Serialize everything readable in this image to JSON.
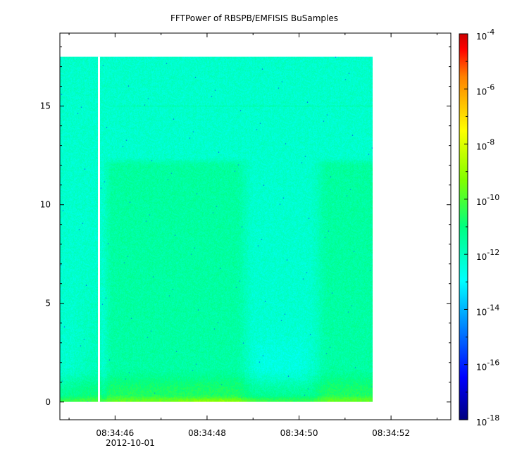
{
  "chart_data": {
    "type": "heatmap",
    "title": "FFTPower of RBSPB/EMFISIS  BuSamples",
    "xlabel": "",
    "ylabel": "",
    "zlabel": "",
    "x_tick_labels": [
      "08:34:46",
      "08:34:48",
      "08:34:50",
      "08:34:52"
    ],
    "x_tick_values_seconds": [
      46,
      48,
      50,
      52
    ],
    "x_date_label": "2012-10-01",
    "xlim_seconds": [
      44.8,
      53.3
    ],
    "y_ticks": [
      0,
      5,
      10,
      15
    ],
    "ylim": [
      -0.9,
      18.7
    ],
    "y_data_range": [
      0,
      17.5
    ],
    "x_data_range_seconds": [
      44.8,
      51.6
    ],
    "colorbar": {
      "scale": "log",
      "range_exponents": [
        -18,
        -4
      ],
      "tick_exponents": [
        -18,
        -16,
        -14,
        -12,
        -10,
        -8,
        -6,
        -4
      ],
      "tick_labels": [
        "10",
        "10",
        "10",
        "10",
        "10",
        "10",
        "10",
        "10"
      ],
      "tick_superscripts": [
        "-18",
        "-16",
        "-14",
        "-12",
        "-10",
        "-8",
        "-6",
        "-4"
      ]
    },
    "data_gap_seconds": 45.65,
    "features": {
      "enhanced_band_top_y": 12.2,
      "quiet_interval_seconds": [
        48.7,
        50.5
      ],
      "line_y": 15.0,
      "low_freq_enhanced_y": 1.0
    },
    "grid": false,
    "colors": {
      "jet": [
        "#00007f",
        "#0000ff",
        "#007fff",
        "#00ffff",
        "#00ff7f",
        "#00ff00",
        "#7fff00",
        "#ffff00",
        "#ff7f00",
        "#ff0000",
        "#7f0000"
      ]
    }
  }
}
